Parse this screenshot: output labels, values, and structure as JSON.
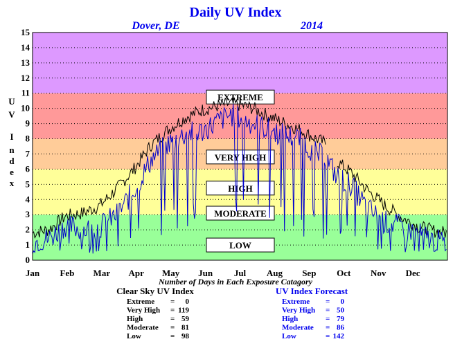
{
  "chart_data": {
    "type": "line",
    "title": "Daily UV Index",
    "location": "Dover, DE",
    "year": "2014",
    "ylabel_letters": [
      "U",
      "V",
      "I",
      "n",
      "d",
      "e",
      "x"
    ],
    "ylim": [
      0,
      15
    ],
    "yticks": [
      "0",
      "1",
      "2",
      "3",
      "4",
      "5",
      "6",
      "7",
      "8",
      "9",
      "10",
      "11",
      "12",
      "13",
      "14",
      "15"
    ],
    "months": [
      "Jan",
      "Feb",
      "Mar",
      "Apr",
      "May",
      "Jun",
      "Jul",
      "Aug",
      "Sep",
      "Oct",
      "Nov",
      "Dec"
    ],
    "grid": true,
    "bands": [
      {
        "label": "LOW",
        "from": 0,
        "to": 3,
        "color": "#99ff99",
        "label_at": 2
      },
      {
        "label": "MODERATE",
        "from": 3,
        "to": 6,
        "color": "#ffff99",
        "label_at": 6.2
      },
      {
        "label": "HIGH",
        "from": 6,
        "to": 8,
        "color": "#ffcc99",
        "label_at": 9.5
      },
      {
        "label": "VERY HIGH",
        "from": 8,
        "to": 11,
        "color": "#ff9999",
        "label_at": 13.6
      },
      {
        "label": "EXTREME",
        "from": 11,
        "to": 15,
        "color": "#dd99ff",
        "label_at": 21.5
      }
    ],
    "series": [
      {
        "name": "Clear Sky UV Index",
        "color": "#000000",
        "x": [
          1,
          15,
          30,
          45,
          60,
          75,
          90,
          105,
          120,
          135,
          150,
          165,
          175,
          185,
          195,
          205,
          220,
          235,
          250,
          258
        ],
        "y": [
          1.8,
          2.0,
          2.9,
          3.1,
          3.6,
          4.7,
          6.0,
          7.6,
          8.6,
          9.4,
          9.9,
          10.2,
          10.3,
          10.2,
          10.0,
          9.6,
          9.1,
          8.6,
          8.0,
          7.7
        ],
        "x2": [
          268,
          280,
          295,
          310,
          325,
          340,
          355,
          364
        ],
        "y2": [
          6.5,
          5.8,
          4.6,
          3.6,
          2.8,
          2.2,
          1.9,
          1.8
        ]
      },
      {
        "name": "UV Index Forecast",
        "color": "#0000cc",
        "x": [
          1,
          15,
          30,
          45,
          60,
          75,
          90,
          105,
          120,
          135,
          150,
          165,
          175,
          185,
          195,
          205,
          220,
          235,
          250,
          258,
          268,
          280,
          295,
          310,
          325,
          340,
          355,
          364
        ],
        "y": [
          1.2,
          1.4,
          2.3,
          2.0,
          2.2,
          3.0,
          4.6,
          6.6,
          7.7,
          8.3,
          8.5,
          9.2,
          9.6,
          9.3,
          9.0,
          8.7,
          8.3,
          8.0,
          7.0,
          6.8,
          5.5,
          5.0,
          3.4,
          2.5,
          2.2,
          1.7,
          1.3,
          1.1
        ]
      }
    ]
  },
  "footer": {
    "caption": "Number of Days in Each Exposure Catagory",
    "clear_sky": {
      "title": "Clear Sky UV Index",
      "rows": [
        {
          "label": "Extreme",
          "eq": "=",
          "value": "0"
        },
        {
          "label": "Very High",
          "eq": "=",
          "value": "119"
        },
        {
          "label": "High",
          "eq": "=",
          "value": "59"
        },
        {
          "label": "Moderate",
          "eq": "=",
          "value": "81"
        },
        {
          "label": "Low",
          "eq": "=",
          "value": "98"
        }
      ]
    },
    "forecast": {
      "title": "UV Index Forecast",
      "rows": [
        {
          "label": "Extreme",
          "eq": "=",
          "value": "0"
        },
        {
          "label": "Very High",
          "eq": "=",
          "value": "50"
        },
        {
          "label": "High",
          "eq": "=",
          "value": "79"
        },
        {
          "label": "Moderate",
          "eq": "=",
          "value": "86"
        },
        {
          "label": "Low",
          "eq": "=",
          "value": "142"
        }
      ]
    }
  },
  "colors": {
    "title": "#0000ee",
    "clear_sky": "#000000",
    "forecast": "#0000cc"
  }
}
